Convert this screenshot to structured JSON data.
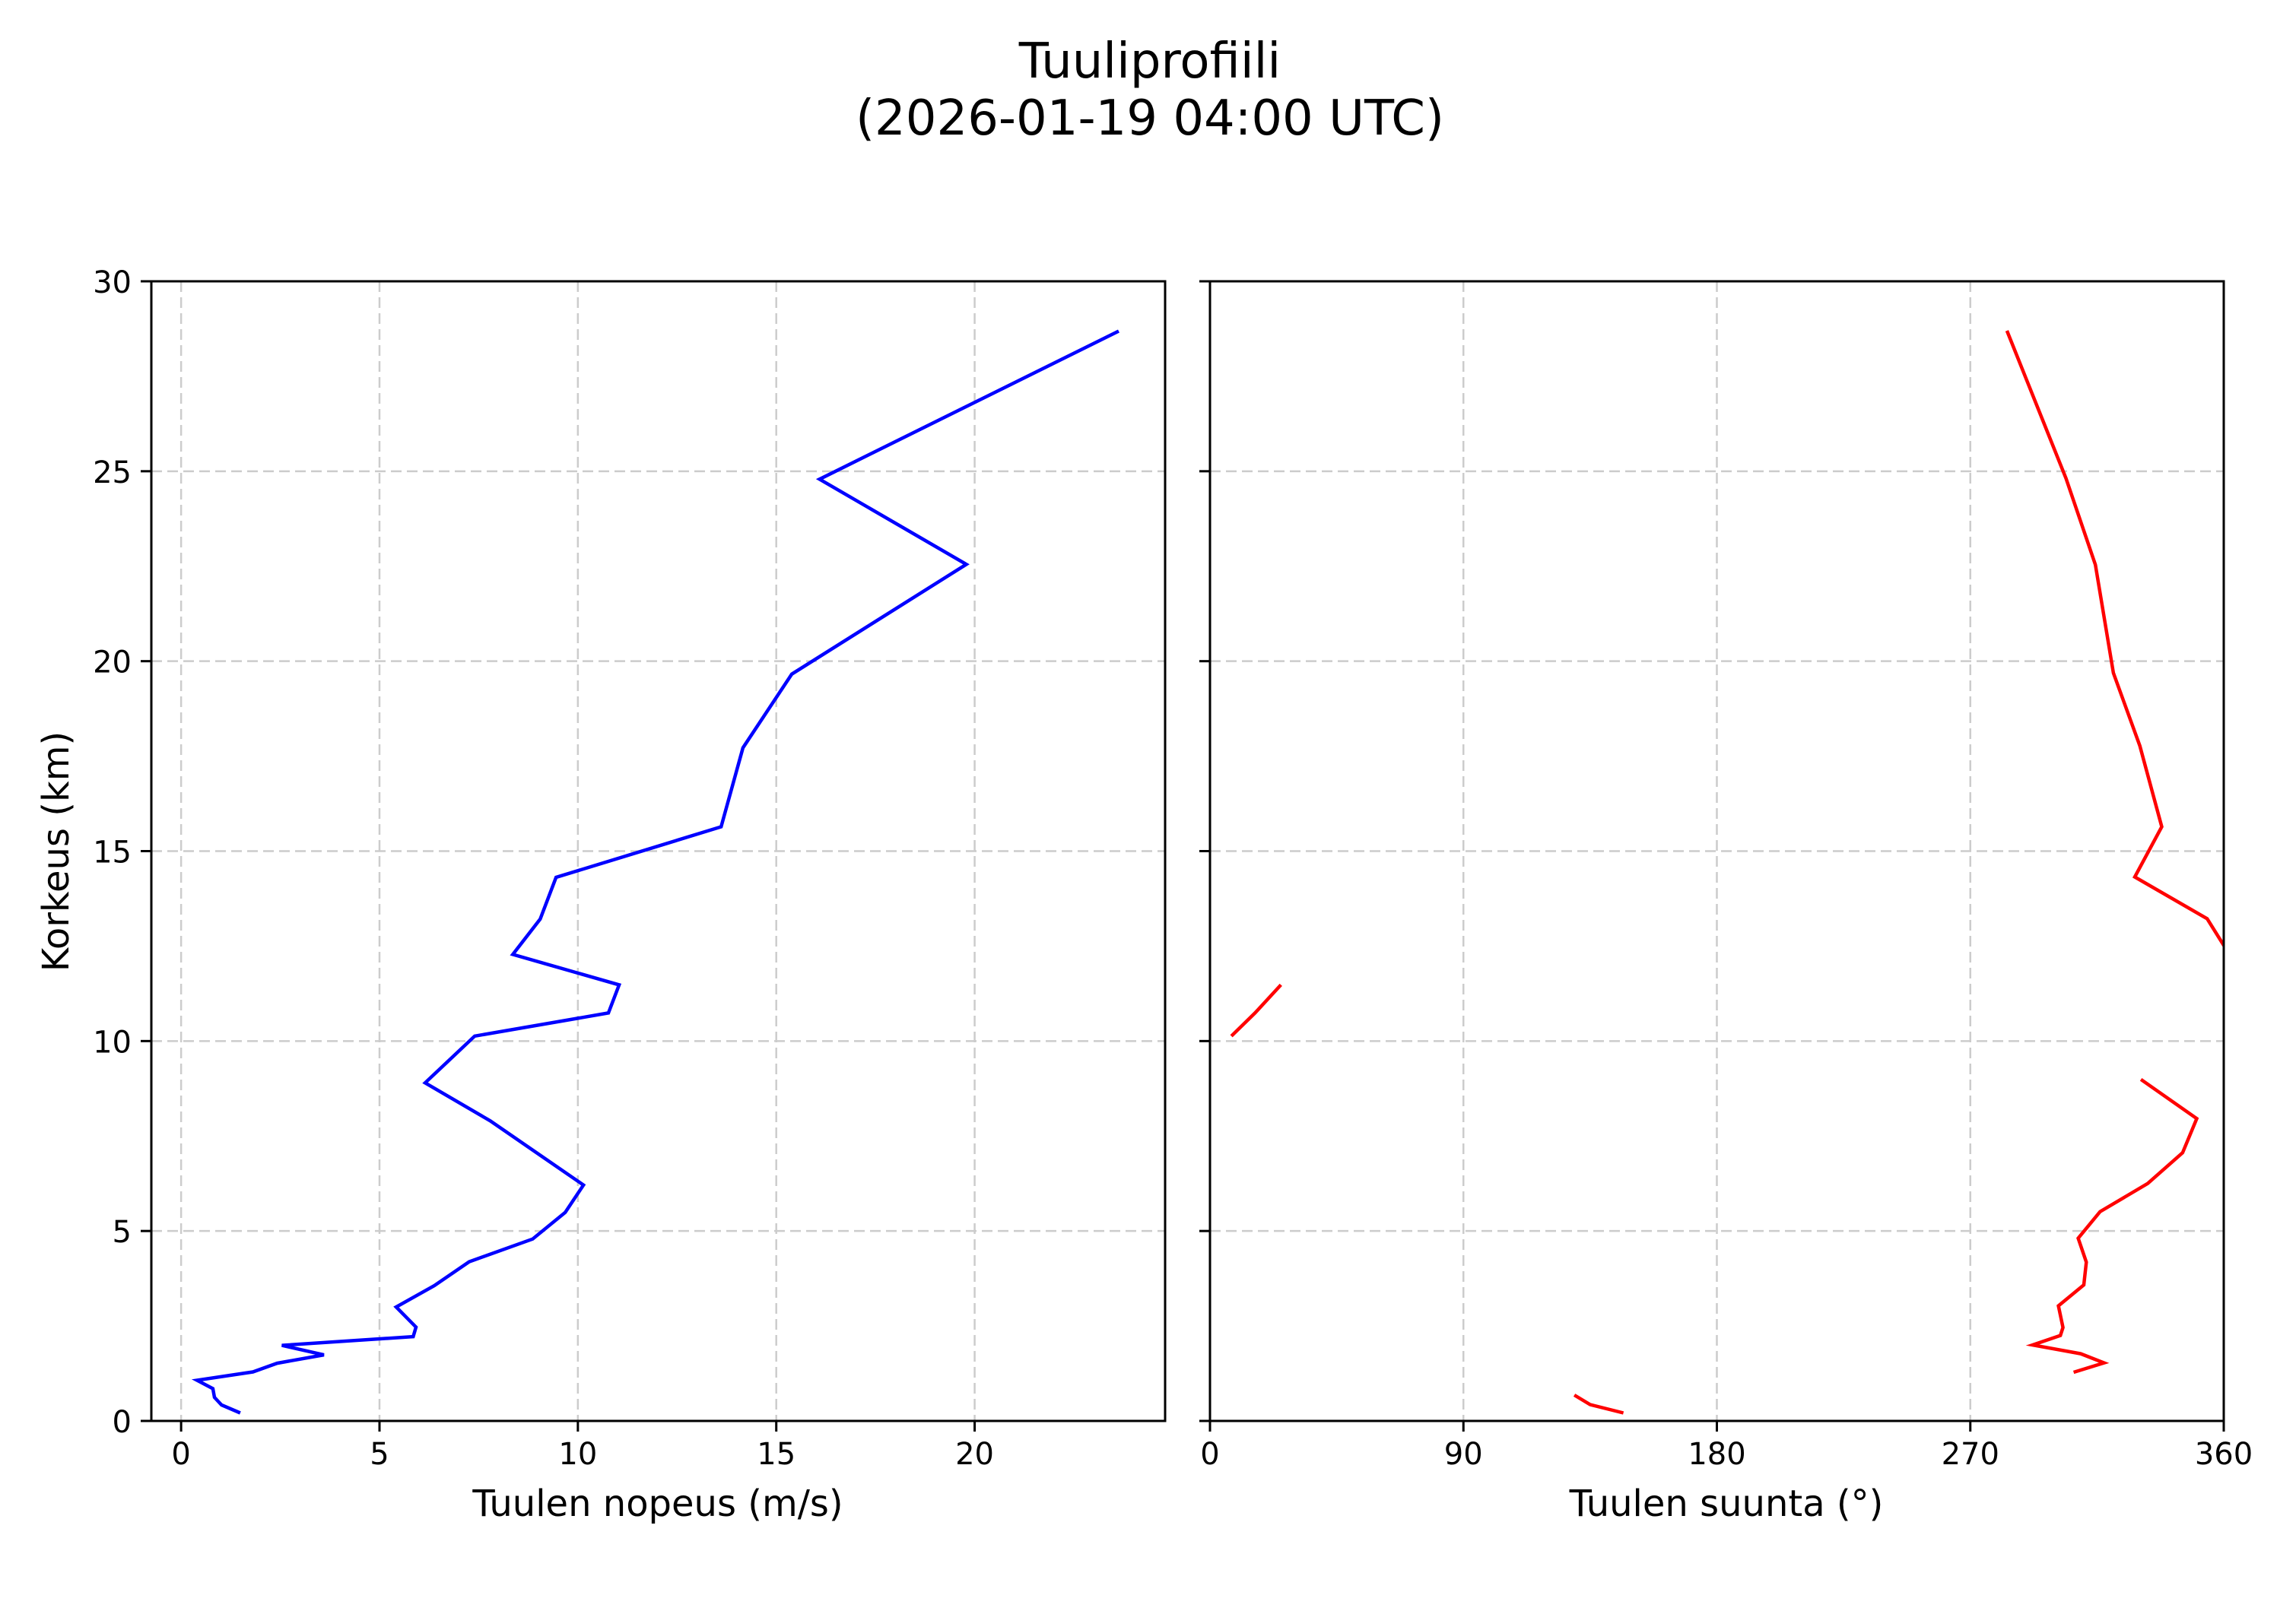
{
  "figure": {
    "title_line1": "Tuuliprofiili",
    "title_line2": "(2026-01-19 04:00 UTC)"
  },
  "chart_data": [
    {
      "type": "line",
      "panel": "left",
      "title": "Tuuliprofiili (2026-01-19 04:00 UTC)",
      "xlabel": "Tuulen nopeus (m/s)",
      "ylabel": "Korkeus (km)",
      "xlim": [
        -0.75,
        24.8
      ],
      "ylim": [
        0,
        30
      ],
      "xticks": [
        "0",
        "5",
        "10",
        "15",
        "20"
      ],
      "xtick_values": [
        0,
        5,
        10,
        15,
        20
      ],
      "yticks": [
        "0",
        "5",
        "10",
        "15",
        "20",
        "25",
        "30"
      ],
      "ytick_values": [
        0,
        5,
        10,
        15,
        20,
        25,
        30
      ],
      "grid": true,
      "grid_style": "dashed",
      "color": "#0000ff",
      "series": [
        {
          "name": "Tuulen nopeus",
          "x": [
            1.49,
            1.02,
            0.84,
            0.8,
            0.4,
            1.81,
            2.42,
            3.6,
            2.54,
            5.85,
            5.92,
            5.42,
            6.38,
            7.26,
            8.86,
            9.68,
            10.14,
            7.79,
            6.15,
            7.4,
            10.77,
            11.04,
            8.36,
            9.05,
            9.45,
            13.61,
            14.16,
            15.39,
            19.79,
            16.09,
            23.63
          ],
          "y": [
            0.21,
            0.42,
            0.62,
            0.85,
            1.07,
            1.29,
            1.52,
            1.74,
            1.99,
            2.22,
            2.47,
            3.0,
            3.56,
            4.19,
            4.79,
            5.49,
            6.21,
            7.9,
            8.9,
            10.13,
            10.74,
            11.48,
            12.28,
            13.21,
            14.31,
            15.64,
            17.72,
            19.66,
            22.55,
            24.79,
            28.69
          ]
        }
      ]
    },
    {
      "type": "line",
      "panel": "right",
      "xlabel": "Tuulen suunta (°)",
      "ylabel": "",
      "xlim": [
        0,
        360
      ],
      "ylim": [
        0,
        30
      ],
      "xticks": [
        "0",
        "90",
        "180",
        "270",
        "360"
      ],
      "xtick_values": [
        0,
        90,
        180,
        270,
        360
      ],
      "yticks_labeled": false,
      "grid": true,
      "grid_style": "dashed",
      "color": "#ff0000",
      "series": [
        {
          "name": "Tuulen suunta (segment 1)",
          "x": [
            146.8,
            135.0,
            129.4
          ],
          "y": [
            0.21,
            0.43,
            0.68
          ]
        },
        {
          "name": "Tuulen suunta (segment 2)",
          "x": [
            306.7,
            317.5,
            309.2,
            292.1,
            302.0,
            302.9,
            301.3,
            310.3,
            311.2,
            308.3,
            316.1,
            333.0,
            345.4,
            350.4,
            330.6
          ],
          "y": [
            1.28,
            1.53,
            1.77,
            2.0,
            2.25,
            2.46,
            3.03,
            3.58,
            4.18,
            4.81,
            5.51,
            6.25,
            7.06,
            7.96,
            8.99
          ]
        },
        {
          "name": "Tuulen suunta (segment 3)",
          "x": [
            7.6,
            16.0,
            25.2
          ],
          "y": [
            10.13,
            10.74,
            11.48
          ]
        },
        {
          "name": "Tuulen suunta (segment 4)",
          "x": [
            362.0,
            354.1,
            328.4,
            338.0,
            330.2,
            320.8,
            314.4,
            304.0,
            283.0
          ],
          "y": [
            12.28,
            13.22,
            14.32,
            15.64,
            17.77,
            19.69,
            22.54,
            24.81,
            28.7
          ]
        }
      ]
    }
  ]
}
